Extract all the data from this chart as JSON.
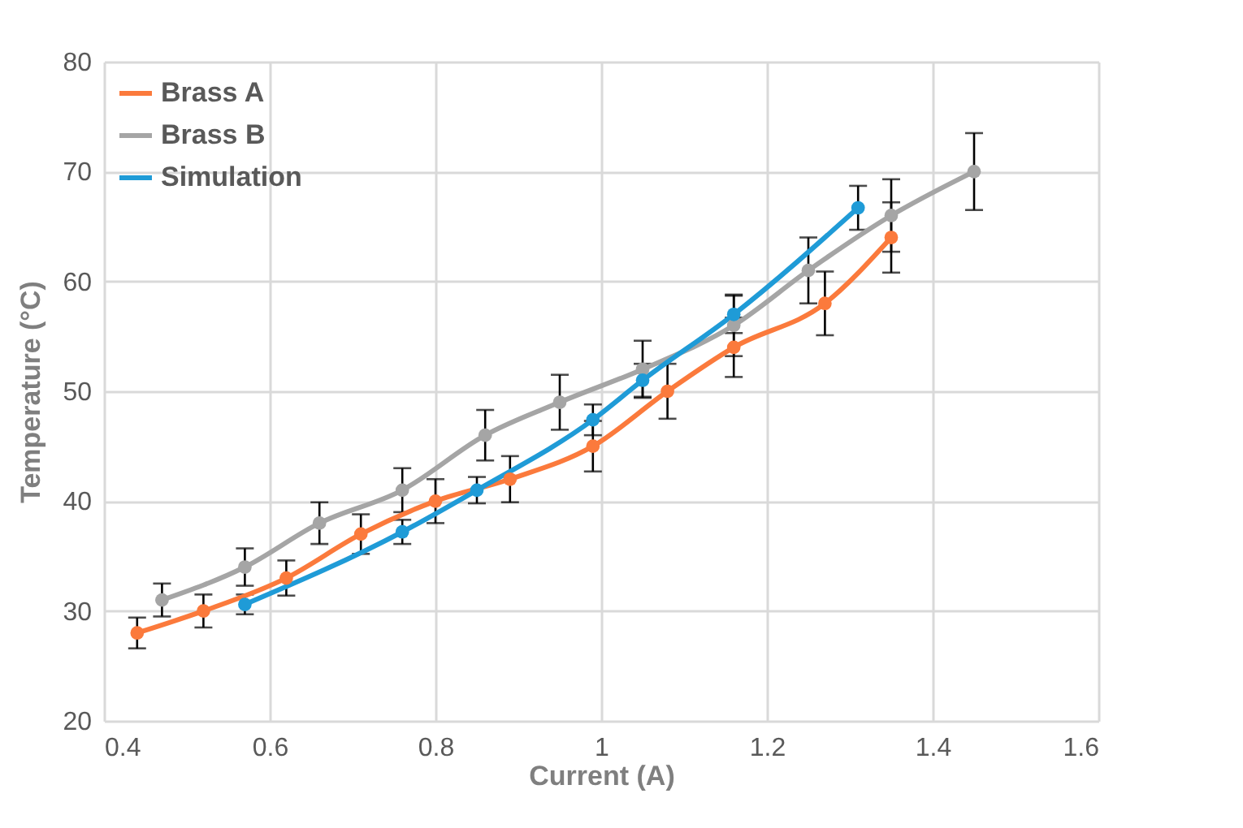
{
  "chart_data": {
    "type": "line",
    "xlabel": "Current (A)",
    "ylabel": "Temperature (°C)",
    "xlim": [
      0.4,
      1.6
    ],
    "xticks": [
      0.4,
      0.6,
      0.8,
      1,
      1.2,
      1.4,
      1.6
    ],
    "ylim": [
      20,
      80
    ],
    "yticks": [
      20,
      30,
      40,
      50,
      60,
      70,
      80
    ],
    "grid": true,
    "legend": "top left",
    "marker": "circle",
    "line_style": "solid",
    "series": [
      {
        "name": "Brass A",
        "color": "#fb7a3c",
        "x": [
          0.44,
          0.52,
          0.62,
          0.71,
          0.8,
          0.89,
          0.99,
          1.08,
          1.16,
          1.27,
          1.35
        ],
        "values": [
          28,
          30,
          33,
          37,
          40,
          42,
          45,
          50,
          54,
          58,
          64
        ],
        "errors": [
          1.4,
          1.5,
          1.6,
          1.8,
          2,
          2.1,
          2.3,
          2.5,
          2.7,
          2.9,
          3.2
        ]
      },
      {
        "name": "Brass B",
        "color": "#a5a5a5",
        "x": [
          0.47,
          0.57,
          0.66,
          0.76,
          0.86,
          0.95,
          1.05,
          1.16,
          1.25,
          1.35,
          1.45
        ],
        "values": [
          31,
          34,
          38,
          41,
          46,
          49,
          52,
          56,
          61,
          66,
          70
        ],
        "errors": [
          1.5,
          1.7,
          1.9,
          2,
          2.3,
          2.5,
          2.6,
          2.8,
          3,
          3.3,
          3.5
        ]
      },
      {
        "name": "Simulation",
        "color": "#1f9bd7",
        "x": [
          0.57,
          0.76,
          0.85,
          0.99,
          1.05,
          1.16,
          1.31
        ],
        "values": [
          30.6,
          37.2,
          41,
          47.4,
          51,
          57,
          66.7
        ],
        "errors": [
          0.9,
          1.1,
          1.2,
          1.4,
          1.5,
          1.7,
          2
        ]
      }
    ]
  }
}
